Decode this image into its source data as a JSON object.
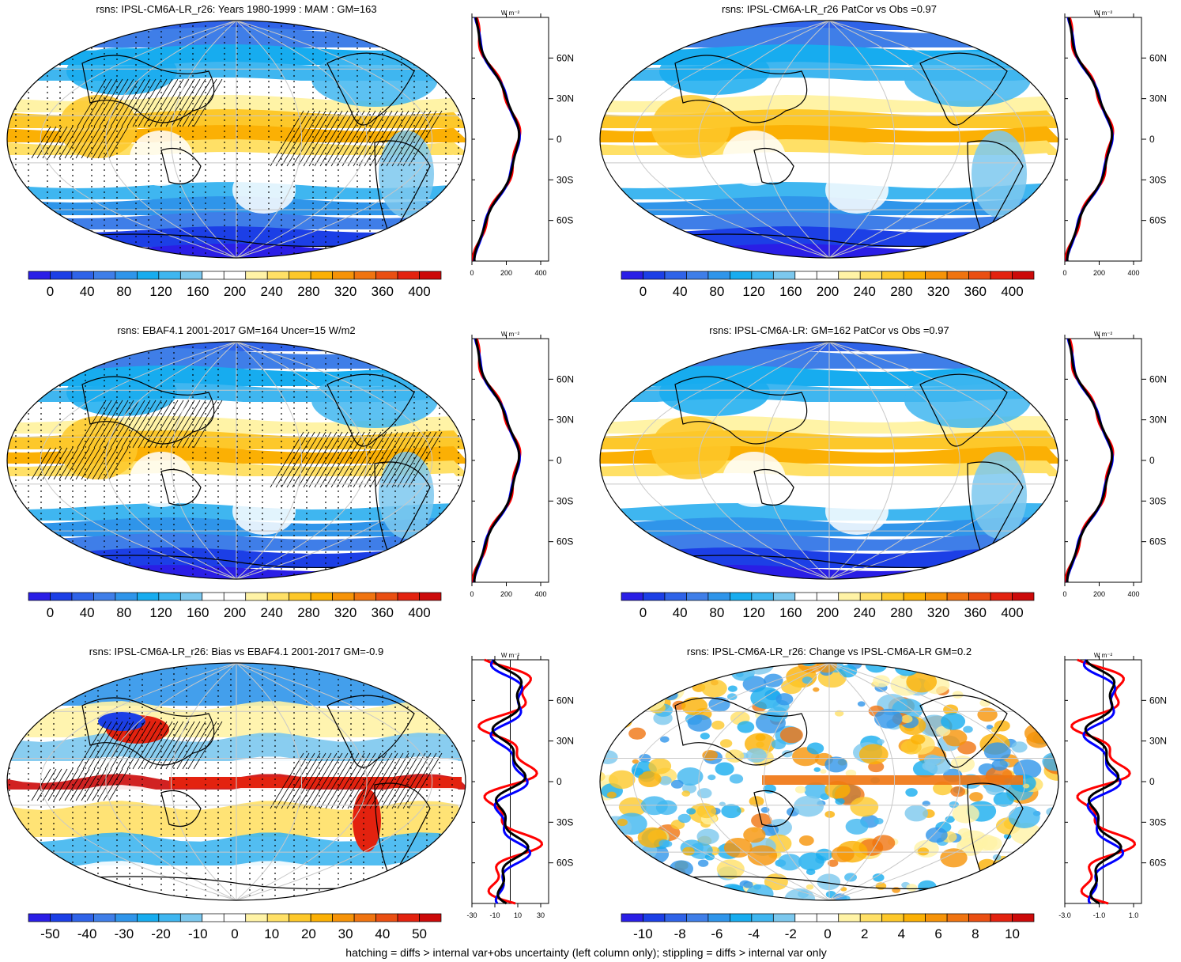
{
  "palettes": {
    "abs": [
      "#2a1ee6",
      "#1c3fe6",
      "#2f63e8",
      "#3f7ee8",
      "#2f95ea",
      "#17acef",
      "#3fb6f0",
      "#7cc8ee",
      "#ffffff",
      "#ffffff",
      "#fff3a6",
      "#ffe066",
      "#fdc82a",
      "#fbb004",
      "#f69308",
      "#f07410",
      "#ea4f12",
      "#e3220f",
      "#cc0a0a"
    ],
    "diff": [
      "#2a1ee6",
      "#1c3fe6",
      "#2f63e8",
      "#3f7ee8",
      "#2f95ea",
      "#17acef",
      "#3fb6f0",
      "#7cc8ee",
      "#ffffff",
      "#ffffff",
      "#fff3a6",
      "#ffe066",
      "#fdc82a",
      "#fbb004",
      "#f69308",
      "#f07410",
      "#ea4f12",
      "#e3220f",
      "#cc0a0a"
    ]
  },
  "panels": [
    {
      "id": "p1",
      "title": "rsns: IPSL-CM6A-LR_r26: Years 1980-1999 : MAM : GM=163",
      "kind": "abs",
      "overlay": "hatch",
      "colorbar_labels": [
        "0",
        "40",
        "80",
        "120",
        "160",
        "200",
        "240",
        "280",
        "320",
        "360",
        "400"
      ],
      "profile_unit": "W m⁻²",
      "profile_ticks": [
        "0",
        "200",
        "400"
      ],
      "lat_labels": [
        "60N",
        "30N",
        "0",
        "30S",
        "60S"
      ]
    },
    {
      "id": "p2",
      "title": "rsns: IPSL-CM6A-LR_r26 PatCor vs Obs =0.97",
      "kind": "abs",
      "overlay": "none",
      "colorbar_labels": [
        "0",
        "40",
        "80",
        "120",
        "160",
        "200",
        "240",
        "280",
        "320",
        "360",
        "400"
      ],
      "profile_unit": "W m⁻²",
      "profile_ticks": [
        "0",
        "200",
        "400"
      ],
      "lat_labels": [
        "60N",
        "30N",
        "0",
        "30S",
        "60S"
      ]
    },
    {
      "id": "p3",
      "title": "rsns: EBAF4.1 2001-2017 GM=164 Uncer=15 W/m2",
      "kind": "abs",
      "overlay": "hatch",
      "colorbar_labels": [
        "0",
        "40",
        "80",
        "120",
        "160",
        "200",
        "240",
        "280",
        "320",
        "360",
        "400"
      ],
      "profile_unit": "W m⁻²",
      "profile_ticks": [
        "0",
        "200",
        "400"
      ],
      "lat_labels": [
        "60N",
        "30N",
        "0",
        "30S",
        "60S"
      ]
    },
    {
      "id": "p4",
      "title": "rsns: IPSL-CM6A-LR: GM=162 PatCor vs Obs =0.97",
      "kind": "abs",
      "overlay": "none",
      "colorbar_labels": [
        "0",
        "40",
        "80",
        "120",
        "160",
        "200",
        "240",
        "280",
        "320",
        "360",
        "400"
      ],
      "profile_unit": "W m⁻²",
      "profile_ticks": [
        "0",
        "200",
        "400"
      ],
      "lat_labels": [
        "60N",
        "30N",
        "0",
        "30S",
        "60S"
      ]
    },
    {
      "id": "p5",
      "title": "rsns: IPSL-CM6A-LR_r26: Bias vs EBAF4.1 2001-2017 GM=-0.9",
      "kind": "bias",
      "overlay": "hatch",
      "colorbar_labels": [
        "-50",
        "-40",
        "-30",
        "-20",
        "-10",
        "0",
        "10",
        "20",
        "30",
        "40",
        "50"
      ],
      "profile_unit": "W m⁻²",
      "profile_ticks": [
        "-30",
        "-10",
        "10",
        "30"
      ],
      "lat_labels": [
        "60N",
        "30N",
        "0",
        "30S",
        "60S"
      ]
    },
    {
      "id": "p6",
      "title": "rsns: IPSL-CM6A-LR_r26: Change vs IPSL-CM6A-LR GM=0.2",
      "kind": "change",
      "overlay": "none",
      "colorbar_labels": [
        "-10",
        "-8",
        "-6",
        "-4",
        "-2",
        "0",
        "2",
        "4",
        "6",
        "8",
        "10"
      ],
      "profile_unit": "W m⁻²",
      "profile_ticks": [
        "-3.0",
        "-1.0",
        "1.0"
      ],
      "lat_labels": [
        "60N",
        "30N",
        "0",
        "30S",
        "60S"
      ]
    }
  ],
  "series_colors": {
    "model": "#ff0000",
    "obs": "#0000ff",
    "ensemble": "#000000"
  },
  "footer": "hatching = diffs > internal var+obs uncertainty (left column only); stippling = diffs > internal var only"
}
